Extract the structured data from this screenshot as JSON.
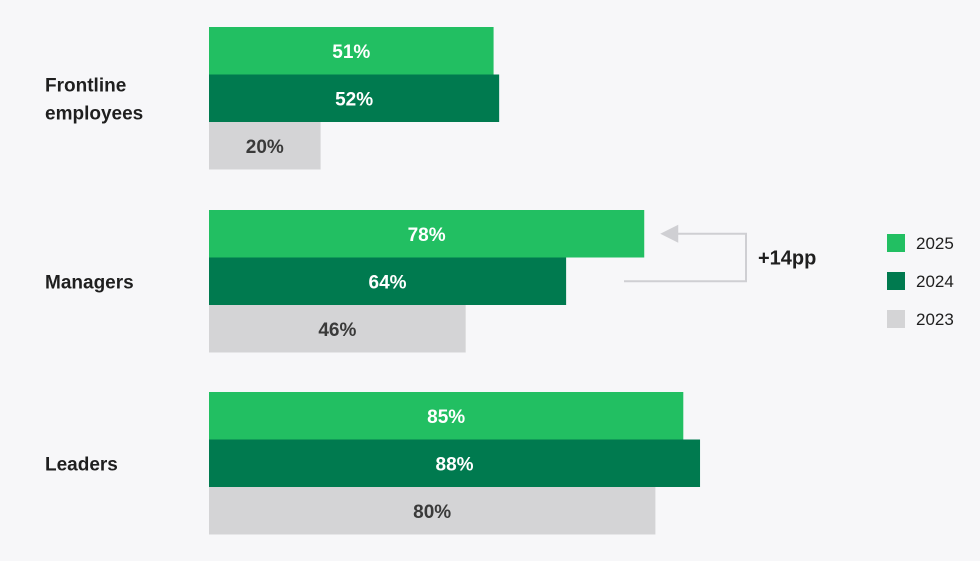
{
  "chart_data": {
    "type": "bar",
    "orientation": "horizontal",
    "categories": [
      "Frontline employees",
      "Managers",
      "Leaders"
    ],
    "category_lines": [
      [
        "Frontline",
        "employees"
      ],
      [
        "Managers"
      ],
      [
        "Leaders"
      ]
    ],
    "series": [
      {
        "name": "2025",
        "values": [
          51,
          78,
          85
        ],
        "labels": [
          "51%",
          "78%",
          "85%"
        ],
        "color": "#22bf62",
        "label_color": "#ffffff"
      },
      {
        "name": "2024",
        "values": [
          52,
          64,
          88
        ],
        "labels": [
          "52%",
          "64%",
          "88%"
        ],
        "color": "#007a4f",
        "label_color": "#ffffff"
      },
      {
        "name": "2023",
        "values": [
          20,
          46,
          80
        ],
        "labels": [
          "20%",
          "46%",
          "80%"
        ],
        "color": "#d4d4d6",
        "label_color": "#3a3a3a"
      }
    ],
    "xlim": [
      0,
      100
    ],
    "legend_position": "right",
    "grid": false,
    "annotation": {
      "text": "+14pp",
      "category": "Managers",
      "from_series": "2024",
      "to_series": "2025"
    }
  }
}
